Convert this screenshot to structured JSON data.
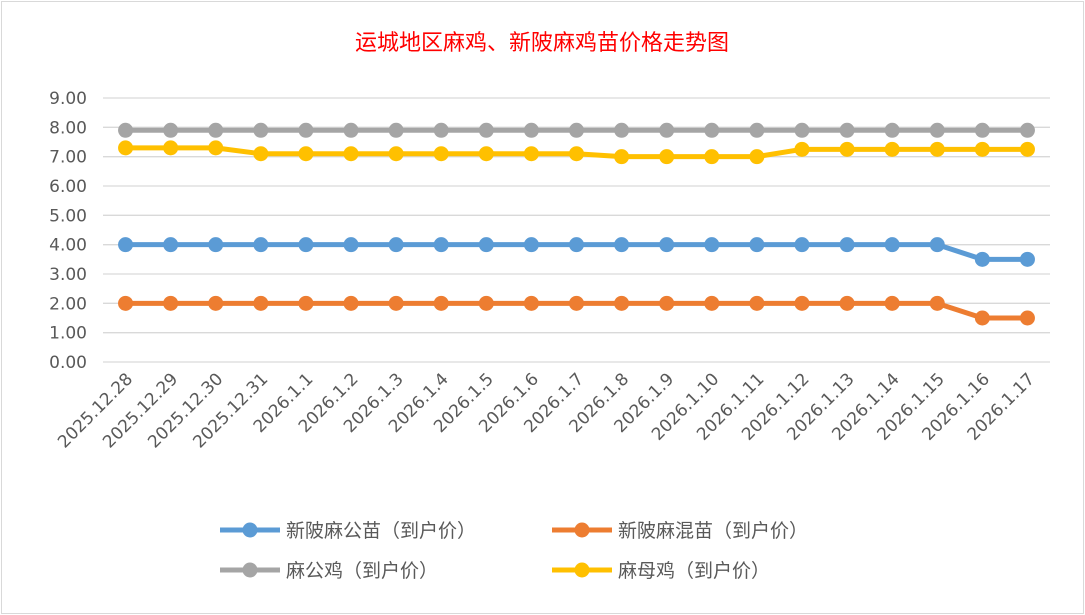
{
  "chart_data": {
    "type": "line",
    "title": "运城地区麻鸡、新陂麻鸡苗价格走势图",
    "xlabel": "",
    "ylabel": "",
    "ylim": [
      0,
      9
    ],
    "y_ticks": [
      "0.00",
      "1.00",
      "2.00",
      "3.00",
      "4.00",
      "5.00",
      "6.00",
      "7.00",
      "8.00",
      "9.00"
    ],
    "grid": true,
    "legend_position": "bottom",
    "categories": [
      "2025.12.28",
      "2025.12.29",
      "2025.12.30",
      "2025.12.31",
      "2026.1.1",
      "2026.1.2",
      "2026.1.3",
      "2026.1.4",
      "2026.1.5",
      "2026.1.6",
      "2026.1.7",
      "2026.1.8",
      "2026.1.9",
      "2026.1.10",
      "2026.1.11",
      "2026.1.12",
      "2026.1.13",
      "2026.1.14",
      "2026.1.15",
      "2026.1.16",
      "2026.1.17"
    ],
    "series": [
      {
        "name": "新陂麻公苗（到户价）",
        "color": "#5b9bd5",
        "values": [
          4.0,
          4.0,
          4.0,
          4.0,
          4.0,
          4.0,
          4.0,
          4.0,
          4.0,
          4.0,
          4.0,
          4.0,
          4.0,
          4.0,
          4.0,
          4.0,
          4.0,
          4.0,
          4.0,
          3.5,
          3.5
        ]
      },
      {
        "name": "新陂麻混苗（到户价）",
        "color": "#ed7d31",
        "values": [
          2.0,
          2.0,
          2.0,
          2.0,
          2.0,
          2.0,
          2.0,
          2.0,
          2.0,
          2.0,
          2.0,
          2.0,
          2.0,
          2.0,
          2.0,
          2.0,
          2.0,
          2.0,
          2.0,
          1.5,
          1.5
        ]
      },
      {
        "name": "麻公鸡（到户价）",
        "color": "#a5a5a5",
        "values": [
          7.9,
          7.9,
          7.9,
          7.9,
          7.9,
          7.9,
          7.9,
          7.9,
          7.9,
          7.9,
          7.9,
          7.9,
          7.9,
          7.9,
          7.9,
          7.9,
          7.9,
          7.9,
          7.9,
          7.9,
          7.9
        ]
      },
      {
        "name": "麻母鸡（到户价）",
        "color": "#ffc000",
        "values": [
          7.3,
          7.3,
          7.3,
          7.1,
          7.1,
          7.1,
          7.1,
          7.1,
          7.1,
          7.1,
          7.1,
          7.0,
          7.0,
          7.0,
          7.0,
          7.25,
          7.25,
          7.25,
          7.25,
          7.25,
          7.25
        ]
      }
    ]
  }
}
